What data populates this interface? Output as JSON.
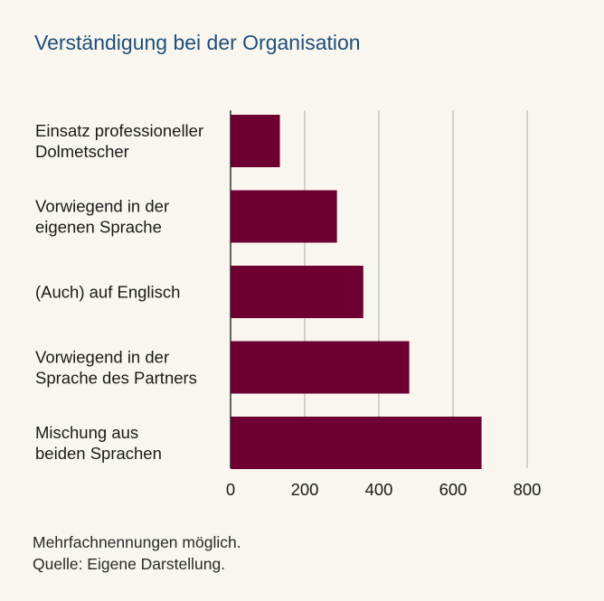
{
  "chart_data": {
    "type": "bar",
    "orientation": "horizontal",
    "title": "Verständigung bei der Organisation",
    "categories": [
      "Einsatz professioneller\nDolmetscher",
      "Vorwiegend in der\neigenen Sprache",
      "(Auch) auf Englisch",
      "Vorwiegend in der\nSprache des Partners",
      "Mischung aus\nbeiden Sprachen"
    ],
    "values": [
      133,
      287,
      358,
      482,
      677
    ],
    "xlim": [
      0,
      800
    ],
    "xticks": [
      0,
      200,
      400,
      600,
      800
    ],
    "grid": true,
    "bar_color": "#6e0031",
    "grid_color": "#b8b8b8"
  },
  "notes": [
    "Mehrfachnennungen möglich.",
    "Quelle: Eigene Darstellung."
  ]
}
